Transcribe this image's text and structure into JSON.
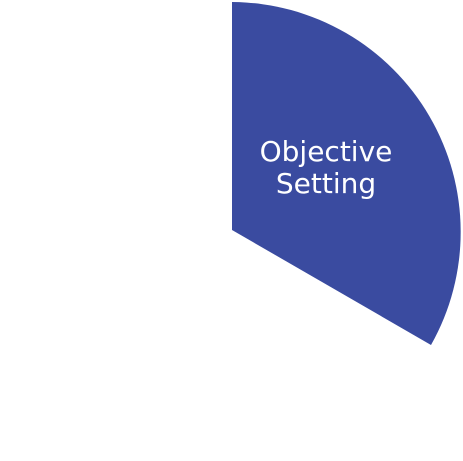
{
  "diagram": {
    "type": "cycle-segment",
    "segment": {
      "label_line1": "Objective",
      "label_line2": "Setting",
      "fill": "#3a4ba0"
    },
    "background": "#ffffff"
  }
}
